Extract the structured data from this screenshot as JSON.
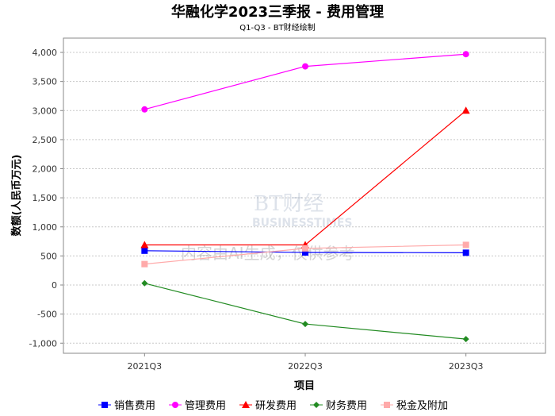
{
  "chart_data": {
    "type": "line",
    "title": "华融化学2023三季报 - 费用管理",
    "subtitle": "Q1-Q3 - BT财经绘制",
    "xlabel": "项目",
    "ylabel": "数额(人民币万元)",
    "categories": [
      "2021Q3",
      "2022Q3",
      "2023Q3"
    ],
    "ylim": [
      -1174,
      4246
    ],
    "yticks": [
      -1000,
      -500,
      0,
      500,
      1000,
      1500,
      2000,
      2500,
      3000,
      3500,
      4000
    ],
    "ytick_labels": [
      "-1,000",
      "-500",
      "0",
      "500",
      "1,000",
      "1,500",
      "2,000",
      "2,500",
      "3,000",
      "3,500",
      "4,000"
    ],
    "grid": true,
    "legend_position": "bottom",
    "series": [
      {
        "name": "销售费用",
        "color": "#0000ff",
        "marker": "square",
        "values": [
          590,
          560,
          555
        ]
      },
      {
        "name": "管理费用",
        "color": "#ff00ff",
        "marker": "circle",
        "values": [
          3020,
          3760,
          3970
        ]
      },
      {
        "name": "研发费用",
        "color": "#ff0000",
        "marker": "triangle",
        "values": [
          690,
          690,
          3000
        ]
      },
      {
        "name": "财务费用",
        "color": "#228b22",
        "marker": "diamond",
        "values": [
          30,
          -670,
          -930
        ]
      },
      {
        "name": "税金及附加",
        "color": "#ffaaaa",
        "marker": "square",
        "values": [
          360,
          630,
          690
        ]
      }
    ]
  },
  "watermark": {
    "brand": "BT财经",
    "brand_en": "BUSINESSTIMES",
    "notice": "内容由AI生成，仅供参考"
  }
}
